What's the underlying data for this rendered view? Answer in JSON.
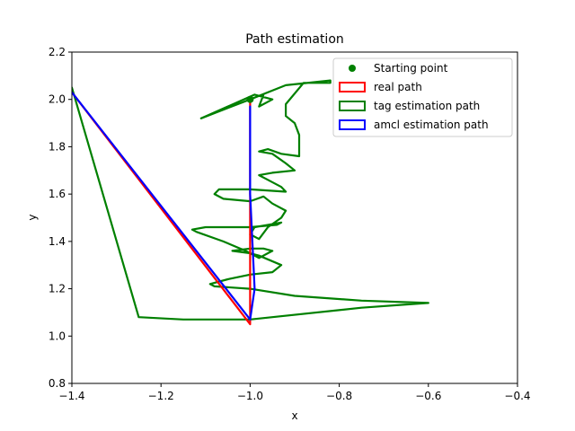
{
  "chart_data": {
    "type": "line",
    "title": "Path estimation",
    "xlabel": "x",
    "ylabel": "y",
    "xlim": [
      -1.4,
      -0.4
    ],
    "ylim": [
      0.8,
      2.2
    ],
    "xticks": [
      -1.4,
      -1.2,
      -1.0,
      -0.8,
      -0.6,
      -0.4
    ],
    "xtick_labels": [
      "−1.4",
      "−1.2",
      "−1.0",
      "−0.8",
      "−0.6",
      "−0.4"
    ],
    "yticks": [
      0.8,
      1.0,
      1.2,
      1.4,
      1.6,
      1.8,
      2.0,
      2.2
    ],
    "ytick_labels": [
      "0.8",
      "1.0",
      "1.2",
      "1.4",
      "1.6",
      "1.8",
      "2.0",
      "2.2"
    ],
    "grid": false,
    "legend_position": "top-right",
    "starting_point": {
      "name": "Starting point",
      "x": -1.0,
      "y": 2.0,
      "color": "#008000"
    },
    "series": [
      {
        "name": "tag estimation path",
        "color": "#008000",
        "x": [
          -0.97,
          -0.98,
          -0.95,
          -0.99,
          -1.11,
          -1.0,
          -0.92,
          -0.82,
          -0.82,
          -0.88,
          -0.92,
          -0.92,
          -0.9,
          -0.89,
          -0.89,
          -0.89,
          -0.93,
          -0.96,
          -0.98,
          -0.95,
          -0.92,
          -0.9,
          -0.95,
          -0.98,
          -0.96,
          -0.93,
          -0.92,
          -1.0,
          -1.07,
          -1.08,
          -1.06,
          -1.0,
          -0.97,
          -0.95,
          -0.92,
          -0.93,
          -0.96,
          -0.98,
          -1.0,
          -0.99,
          -0.96,
          -0.93,
          -0.94,
          -1.0,
          -1.1,
          -1.13,
          -1.12,
          -1.06,
          -1.01,
          -0.98,
          -0.96,
          -0.95,
          -0.97,
          -1.0,
          -1.04,
          -1.0,
          -0.98,
          -0.93,
          -0.95,
          -1.0,
          -1.05,
          -1.09,
          -1.08,
          -1.0,
          -0.9,
          -0.75,
          -0.6,
          -0.75,
          -0.95,
          -1.0,
          -1.15,
          -1.25,
          -1.4
        ],
        "y": [
          2.02,
          1.97,
          2.0,
          2.02,
          1.92,
          2.0,
          2.06,
          2.08,
          2.07,
          2.07,
          1.98,
          1.93,
          1.9,
          1.85,
          1.8,
          1.76,
          1.77,
          1.79,
          1.78,
          1.77,
          1.73,
          1.7,
          1.69,
          1.68,
          1.66,
          1.63,
          1.61,
          1.62,
          1.62,
          1.6,
          1.58,
          1.57,
          1.59,
          1.56,
          1.53,
          1.5,
          1.46,
          1.41,
          1.43,
          1.46,
          1.47,
          1.48,
          1.47,
          1.46,
          1.46,
          1.45,
          1.44,
          1.4,
          1.36,
          1.33,
          1.35,
          1.36,
          1.37,
          1.37,
          1.36,
          1.35,
          1.34,
          1.3,
          1.27,
          1.26,
          1.24,
          1.22,
          1.21,
          1.2,
          1.17,
          1.15,
          1.14,
          1.12,
          1.08,
          1.07,
          1.07,
          1.08,
          2.05
        ],
        "stroke_width": 2.2
      },
      {
        "name": "real path",
        "color": "#ff0000",
        "x": [
          -1.0,
          -1.0,
          -1.4
        ],
        "y": [
          2.0,
          1.05,
          2.03
        ],
        "stroke_width": 2.2
      },
      {
        "name": "amcl estimation path",
        "color": "#0000ff",
        "x": [
          -1.0,
          -1.0,
          -0.99,
          -1.0,
          -1.4
        ],
        "y": [
          1.97,
          1.6,
          1.2,
          1.07,
          2.03
        ],
        "stroke_width": 2.2
      }
    ],
    "legend": [
      {
        "label": "Starting point",
        "kind": "marker",
        "color": "#008000"
      },
      {
        "label": "real path",
        "kind": "patch",
        "color": "#ff0000"
      },
      {
        "label": "tag estimation path",
        "kind": "patch",
        "color": "#008000"
      },
      {
        "label": "amcl estimation path",
        "kind": "patch",
        "color": "#0000ff"
      }
    ]
  }
}
